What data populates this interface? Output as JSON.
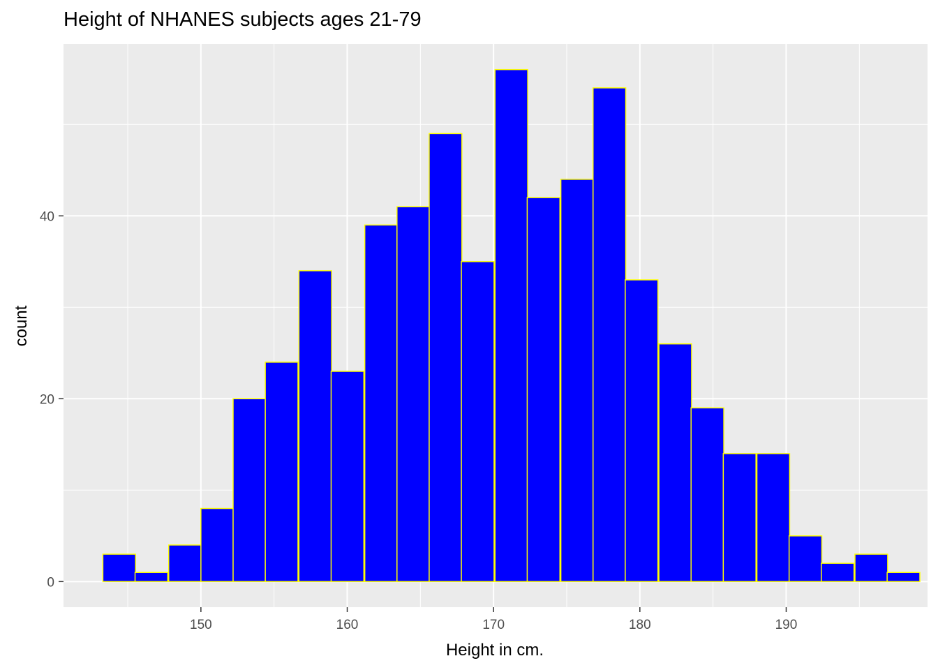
{
  "chart_data": {
    "type": "bar",
    "title": "Height of NHANES subjects ages 21-79",
    "xlabel": "Height in cm.",
    "ylabel": "count",
    "bin_width": 2.236,
    "bins": [
      {
        "x_start": 143.3,
        "count": 3
      },
      {
        "x_start": 145.5,
        "count": 1
      },
      {
        "x_start": 147.8,
        "count": 4
      },
      {
        "x_start": 150.0,
        "count": 8
      },
      {
        "x_start": 152.2,
        "count": 20
      },
      {
        "x_start": 154.4,
        "count": 24
      },
      {
        "x_start": 156.7,
        "count": 34
      },
      {
        "x_start": 158.9,
        "count": 23
      },
      {
        "x_start": 161.2,
        "count": 39
      },
      {
        "x_start": 163.4,
        "count": 41
      },
      {
        "x_start": 165.6,
        "count": 49
      },
      {
        "x_start": 167.8,
        "count": 35
      },
      {
        "x_start": 170.1,
        "count": 56
      },
      {
        "x_start": 172.3,
        "count": 42
      },
      {
        "x_start": 174.6,
        "count": 44
      },
      {
        "x_start": 176.8,
        "count": 54
      },
      {
        "x_start": 179.0,
        "count": 33
      },
      {
        "x_start": 181.3,
        "count": 26
      },
      {
        "x_start": 183.5,
        "count": 19
      },
      {
        "x_start": 185.7,
        "count": 14
      },
      {
        "x_start": 188.0,
        "count": 14
      },
      {
        "x_start": 190.2,
        "count": 5
      },
      {
        "x_start": 192.4,
        "count": 2
      },
      {
        "x_start": 194.7,
        "count": 3
      },
      {
        "x_start": 196.9,
        "count": 1
      }
    ],
    "xlim": [
      140.61,
      199.66
    ],
    "ylim": [
      -2.8,
      58.8
    ],
    "x_ticks": [
      150,
      160,
      170,
      180,
      190
    ],
    "x_tick_labels": [
      "150",
      "160",
      "170",
      "180",
      "190"
    ],
    "y_ticks": [
      0,
      20,
      40
    ],
    "y_tick_labels": [
      "0",
      "20",
      "40"
    ],
    "x_minor_ticks": [
      145,
      155,
      165,
      175,
      185,
      195
    ],
    "y_minor_ticks": [
      10,
      30,
      50
    ],
    "bar_fill": "#0000ff",
    "bar_outline": "#ffff00",
    "panel_background": "#ebebeb",
    "grid_color": "#ffffff",
    "grid": true,
    "legend": "none"
  }
}
